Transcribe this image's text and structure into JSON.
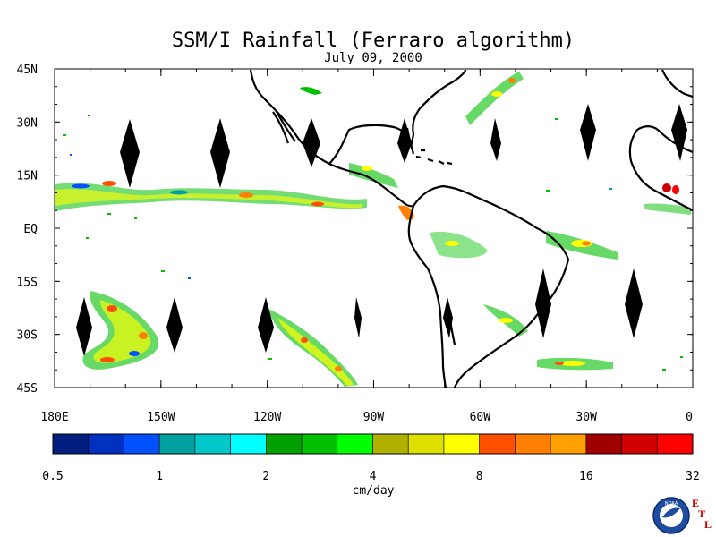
{
  "title": "SSM/I Rainfall (Ferraro algorithm)",
  "date": "July 09, 2000",
  "map": {
    "lat_labels": [
      "45N",
      "30N",
      "15N",
      "EQ",
      "15S",
      "30S",
      "45S"
    ],
    "lat_values": [
      45,
      30,
      15,
      0,
      -15,
      -30,
      -45
    ],
    "lon_labels": [
      "180E",
      "150W",
      "120W",
      "90W",
      "60W",
      "30W",
      "0"
    ],
    "lon_values": [
      -180,
      -150,
      -120,
      -90,
      -60,
      -30,
      0
    ],
    "lon_range": [
      -180,
      0
    ],
    "lat_range": [
      -45,
      45
    ]
  },
  "colorbar": {
    "label": "cm/day",
    "tick_labels": [
      "0.5",
      "1",
      "2",
      "4",
      "8",
      "16",
      "32"
    ],
    "colors": [
      "#002080",
      "#0030c0",
      "#0050ff",
      "#00a0a0",
      "#00c8c8",
      "#00ffff",
      "#00a000",
      "#00c000",
      "#00ff00",
      "#b0b000",
      "#e0e000",
      "#ffff00",
      "#ff5000",
      "#ff8000",
      "#ffa000",
      "#a00000",
      "#d00000",
      "#ff0000"
    ]
  },
  "logo": {
    "org_text": "NOAA",
    "lab_letters": [
      "E",
      "T",
      "L"
    ]
  }
}
